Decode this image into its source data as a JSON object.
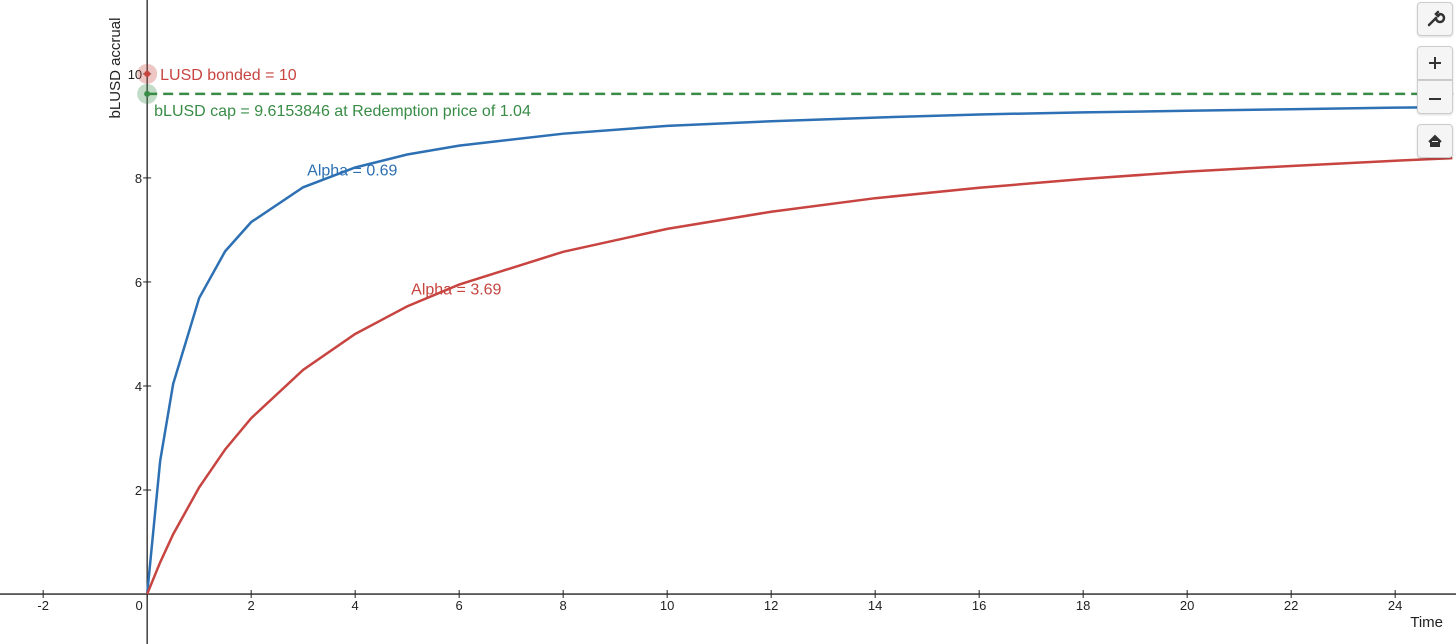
{
  "chart_data": {
    "type": "line",
    "xlabel": "Time",
    "ylabel": "bLUSD accrual",
    "x": [
      0,
      0.25,
      0.5,
      1,
      1.5,
      2,
      3,
      4,
      5,
      6,
      8,
      10,
      12,
      14,
      16,
      18,
      20,
      22,
      24,
      25.1
    ],
    "series": [
      {
        "name": "Alpha = 0.69",
        "color": "#2d70b3",
        "values": [
          0,
          2.56,
          4.04,
          5.69,
          6.59,
          7.15,
          7.82,
          8.2,
          8.45,
          8.62,
          8.85,
          9.0,
          9.09,
          9.16,
          9.22,
          9.26,
          9.29,
          9.32,
          9.35,
          9.36
        ]
      },
      {
        "name": "Alpha = 3.69",
        "color": "#c74440",
        "values": [
          0,
          0.61,
          1.15,
          2.05,
          2.78,
          3.38,
          4.31,
          5.0,
          5.53,
          5.95,
          6.58,
          7.02,
          7.35,
          7.61,
          7.81,
          7.98,
          8.12,
          8.23,
          8.33,
          8.38
        ]
      }
    ],
    "points": [
      {
        "label": "LUSD bonded = 10",
        "value": 10,
        "color": "#c74440"
      },
      {
        "label": "bLUSD cap = 9.6153846 at Redemption price of 1.04",
        "value": 9.6153846,
        "color": "#388c46"
      }
    ],
    "xlim": [
      -2.83,
      25.17
    ],
    "ylim": [
      -0.96,
      11.42
    ],
    "xticks": [
      -2,
      0,
      2,
      4,
      6,
      8,
      10,
      12,
      14,
      16,
      18,
      20,
      22,
      24
    ],
    "yticks": [
      2,
      4,
      6,
      8,
      10
    ]
  }
}
